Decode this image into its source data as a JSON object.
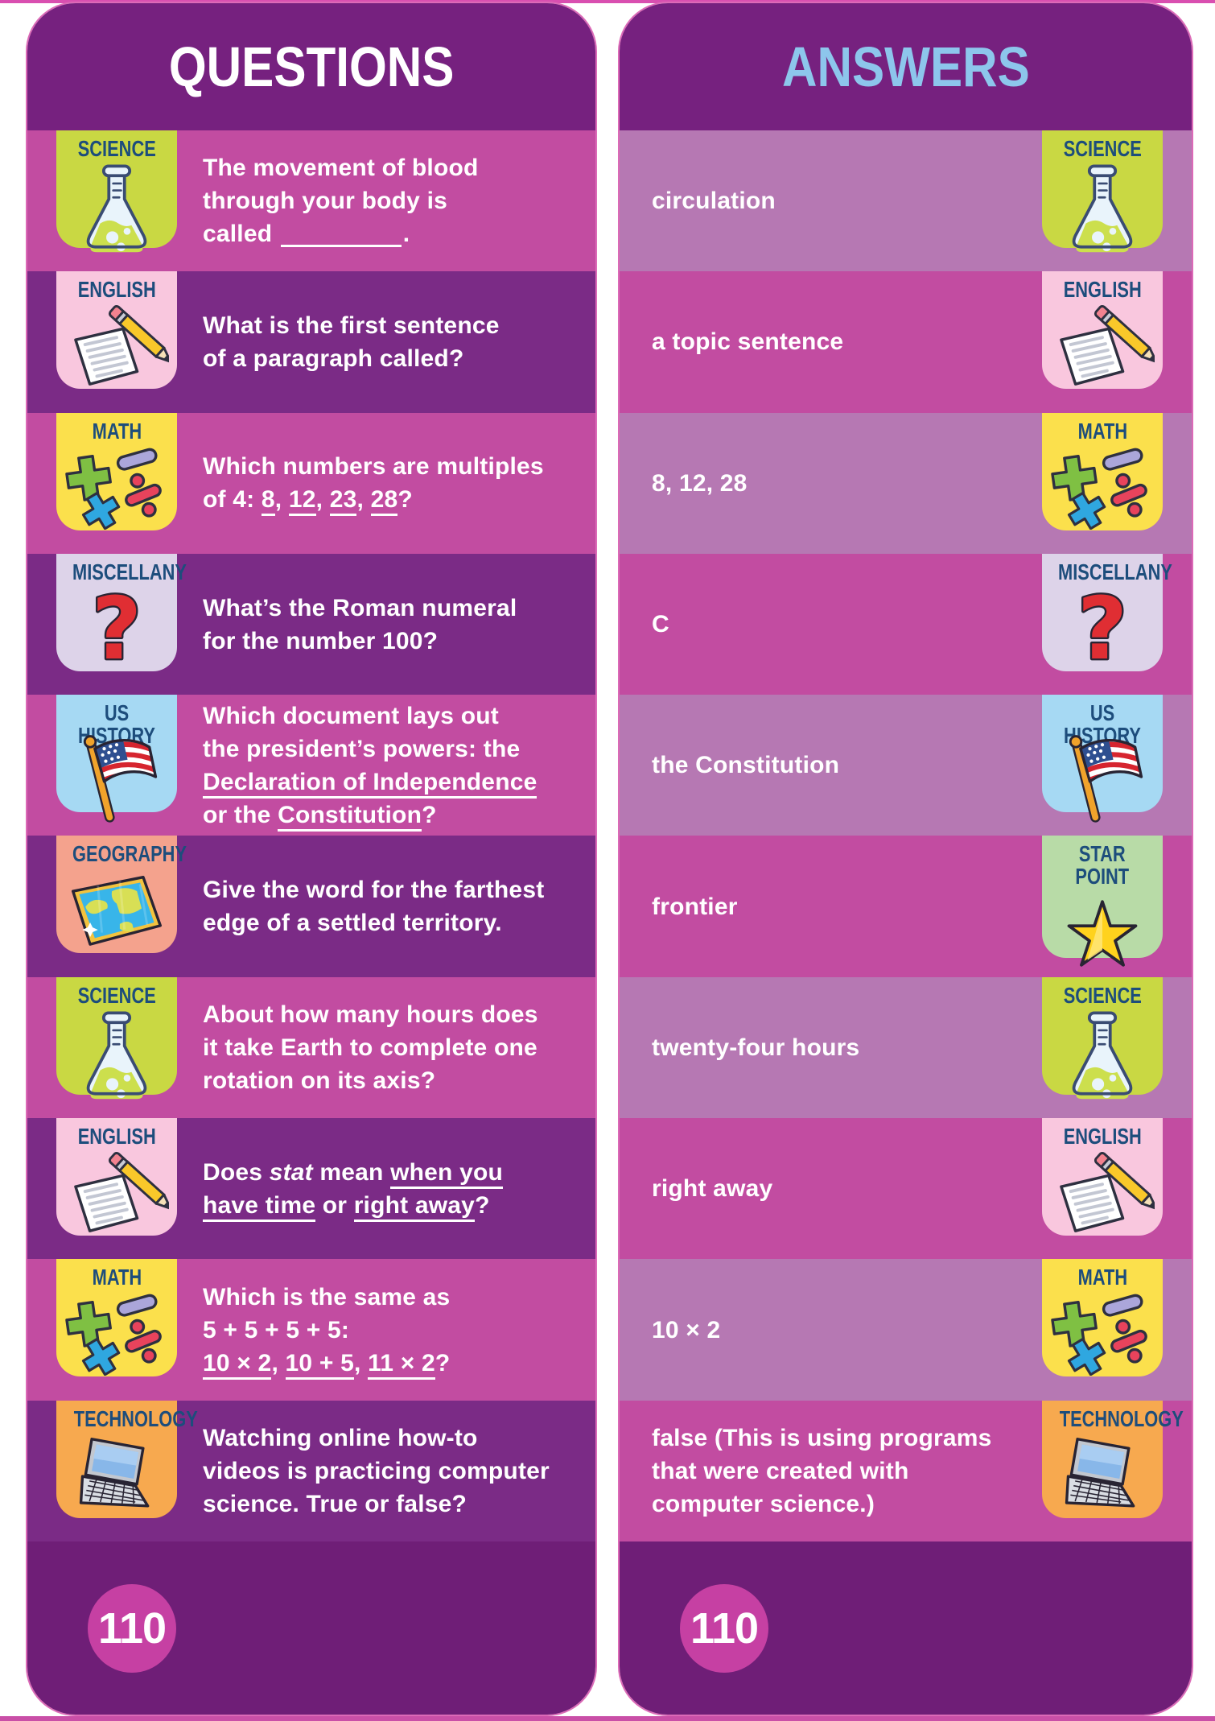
{
  "colors": {
    "header_purple": "#76217f",
    "row_magenta": "#c24ca1",
    "row_purple": "#7b2b86",
    "row_mauve": "#b678b3",
    "footer_purple": "#6f1e77",
    "page_circle_magenta": "#c640a3",
    "badge_label_navy": "#1d4d7c",
    "questions_title_color": "#ffffff",
    "answers_title_color": "#8dc6ec"
  },
  "questions_card": {
    "title": "QUESTIONS",
    "page_number": "110",
    "rows": [
      {
        "category": "SCIENCE",
        "icon": "flask-icon",
        "badge_color": "#c9d843",
        "text": "The movement of blood\nthrough your body is\ncalled {blank}."
      },
      {
        "category": "ENGLISH",
        "icon": "paper-pencil-icon",
        "badge_color": "#f9c7de",
        "text": "What is the first sentence\nof a paragraph called?"
      },
      {
        "category": "MATH",
        "icon": "math-symbols-icon",
        "badge_color": "#fbe04c",
        "text": "Which numbers are multiples\nof 4: {u}8{/u}, {u}12{/u}, {u}23{/u}, {u}28{/u}?"
      },
      {
        "category": "MISCELLANY",
        "icon": "question-mark-icon",
        "badge_color": "#ddd3e9",
        "text": "What’s the Roman numeral\nfor the number 100?"
      },
      {
        "category": "US HISTORY",
        "icon": "us-flag-icon",
        "badge_color": "#a6d9f3",
        "text": "Which document lays out\nthe president’s powers: the\n{u}Declaration of Independence{/u}\nor the {u}Constitution{/u}?"
      },
      {
        "category": "GEOGRAPHY",
        "icon": "map-icon",
        "badge_color": "#f4a28d",
        "text": "Give the word for the farthest\nedge of a settled territory."
      },
      {
        "category": "SCIENCE",
        "icon": "flask-icon",
        "badge_color": "#c9d843",
        "text": "About how many hours does\nit take Earth to complete one\nrotation on its axis?"
      },
      {
        "category": "ENGLISH",
        "icon": "paper-pencil-icon",
        "badge_color": "#f9c7de",
        "text": "Does {i}stat{/i} mean {u}when you{/u}\n{u}have time{/u} or {u}right away{/u}?"
      },
      {
        "category": "MATH",
        "icon": "math-symbols-icon",
        "badge_color": "#fbe04c",
        "text": "Which is the same as\n5 + 5 + 5 + 5:\n{u}10 × 2{/u}, {u}10 + 5{/u}, {u}11 × 2{/u}?"
      },
      {
        "category": "TECHNOLOGY",
        "icon": "laptop-icon",
        "badge_color": "#f7a94f",
        "text": "Watching online how-to\nvideos is practicing computer\nscience. True or false?"
      }
    ]
  },
  "answers_card": {
    "title": "ANSWERS",
    "page_number": "110",
    "rows": [
      {
        "category": "SCIENCE",
        "icon": "flask-icon",
        "badge_color": "#c9d843",
        "text": "circulation"
      },
      {
        "category": "ENGLISH",
        "icon": "paper-pencil-icon",
        "badge_color": "#f9c7de",
        "text": "a topic sentence"
      },
      {
        "category": "MATH",
        "icon": "math-symbols-icon",
        "badge_color": "#fbe04c",
        "text": "8, 12, 28"
      },
      {
        "category": "MISCELLANY",
        "icon": "question-mark-icon",
        "badge_color": "#ddd3e9",
        "text": "C"
      },
      {
        "category": "US HISTORY",
        "icon": "us-flag-icon",
        "badge_color": "#a6d9f3",
        "text": "the Constitution"
      },
      {
        "category": "STAR\nPOINT",
        "icon": "star-icon",
        "badge_color": "#b8dba7",
        "text": "frontier"
      },
      {
        "category": "SCIENCE",
        "icon": "flask-icon",
        "badge_color": "#c9d843",
        "text": "twenty-four hours"
      },
      {
        "category": "ENGLISH",
        "icon": "paper-pencil-icon",
        "badge_color": "#f9c7de",
        "text": "right away"
      },
      {
        "category": "MATH",
        "icon": "math-symbols-icon",
        "badge_color": "#fbe04c",
        "text": "10 × 2"
      },
      {
        "category": "TECHNOLOGY",
        "icon": "laptop-icon",
        "badge_color": "#f7a94f",
        "text": "false (This is using programs\nthat were created with\ncomputer science.)"
      }
    ]
  }
}
